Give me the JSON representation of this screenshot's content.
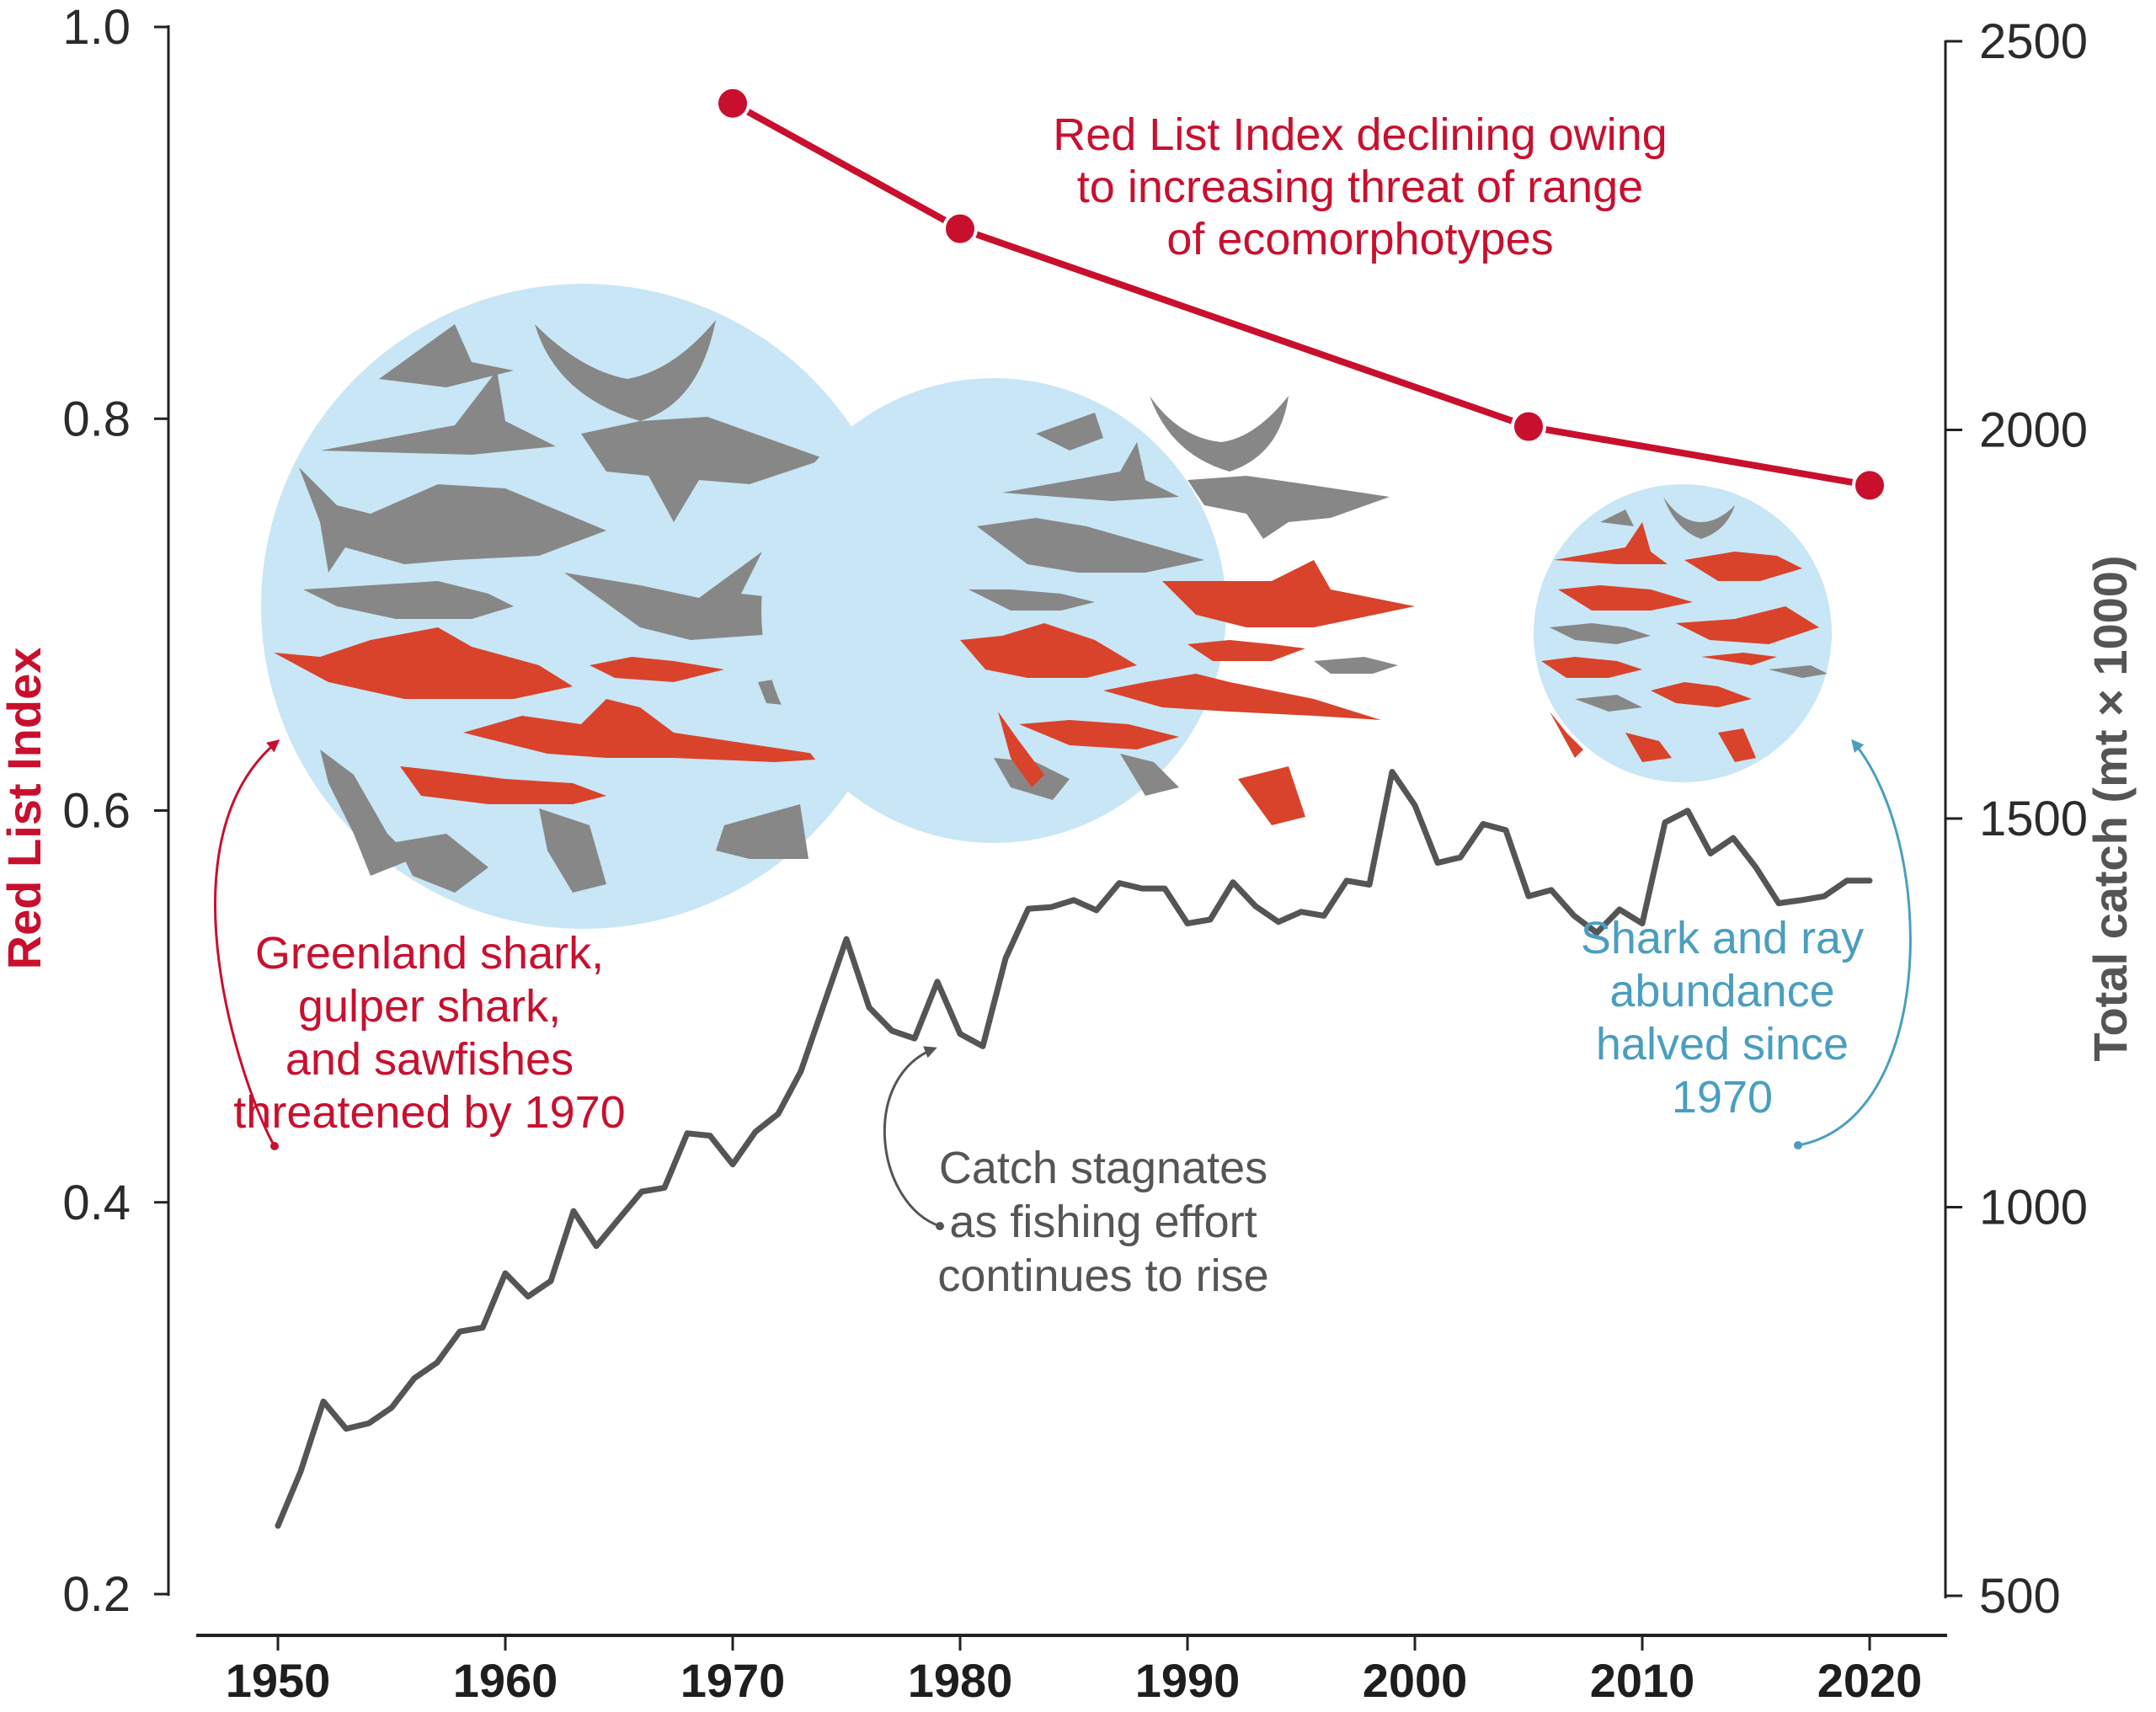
{
  "chart_data": {
    "type": "line",
    "x_range": [
      1946,
      2022
    ],
    "x_ticks": [
      1950,
      1960,
      1970,
      1980,
      1990,
      2000,
      2010,
      2020
    ],
    "y_left": {
      "label": "Red List Index",
      "range": [
        0.2,
        1.0
      ],
      "ticks": [
        "0.2",
        "0.4",
        "0.6",
        "0.8",
        "1.0"
      ],
      "color": "#c8102e"
    },
    "y_right": {
      "label": "Total catch (mt × 1000)",
      "range": [
        500,
        2500
      ],
      "ticks": [
        "500",
        "1000",
        "1500",
        "2000",
        "2500"
      ],
      "color": "#555555"
    },
    "series": [
      {
        "name": "Red List Index",
        "axis": "left",
        "color": "#c8102e",
        "points": [
          [
            1970,
            0.961
          ],
          [
            1980,
            0.897
          ],
          [
            2005,
            0.796
          ],
          [
            2020,
            0.766
          ]
        ]
      },
      {
        "name": "Total catch",
        "axis": "right",
        "color": "#555555",
        "points": [
          [
            1950,
            590
          ],
          [
            1951,
            660
          ],
          [
            1952,
            750
          ],
          [
            1953,
            715
          ],
          [
            1954,
            722
          ],
          [
            1955,
            742
          ],
          [
            1956,
            780
          ],
          [
            1957,
            800
          ],
          [
            1958,
            840
          ],
          [
            1959,
            845
          ],
          [
            1960,
            915
          ],
          [
            1961,
            885
          ],
          [
            1962,
            905
          ],
          [
            1963,
            995
          ],
          [
            1964,
            950
          ],
          [
            1965,
            985
          ],
          [
            1966,
            1020
          ],
          [
            1967,
            1025
          ],
          [
            1968,
            1095
          ],
          [
            1969,
            1092
          ],
          [
            1970,
            1055
          ],
          [
            1971,
            1097
          ],
          [
            1972,
            1120
          ],
          [
            1973,
            1175
          ],
          [
            1974,
            1260
          ],
          [
            1975,
            1345
          ],
          [
            1976,
            1257
          ],
          [
            1977,
            1227
          ],
          [
            1978,
            1217
          ],
          [
            1979,
            1290
          ],
          [
            1980,
            1223
          ],
          [
            1981,
            1207
          ],
          [
            1982,
            1320
          ],
          [
            1983,
            1384
          ],
          [
            1984,
            1386
          ],
          [
            1985,
            1395
          ],
          [
            1986,
            1382
          ],
          [
            1987,
            1417
          ],
          [
            1988,
            1410
          ],
          [
            1989,
            1410
          ],
          [
            1990,
            1365
          ],
          [
            1991,
            1370
          ],
          [
            1992,
            1418
          ],
          [
            1993,
            1387
          ],
          [
            1994,
            1367
          ],
          [
            1995,
            1380
          ],
          [
            1996,
            1375
          ],
          [
            1997,
            1420
          ],
          [
            1998,
            1415
          ],
          [
            1999,
            1560
          ],
          [
            2000,
            1517
          ],
          [
            2001,
            1443
          ],
          [
            2002,
            1450
          ],
          [
            2003,
            1493
          ],
          [
            2004,
            1485
          ],
          [
            2005,
            1400
          ],
          [
            2006,
            1408
          ],
          [
            2007,
            1375
          ],
          [
            2008,
            1353
          ],
          [
            2009,
            1383
          ],
          [
            2010,
            1365
          ],
          [
            2011,
            1495
          ],
          [
            2012,
            1510
          ],
          [
            2013,
            1455
          ],
          [
            2014,
            1475
          ],
          [
            2015,
            1437
          ],
          [
            2016,
            1391
          ],
          [
            2017,
            1395
          ],
          [
            2018,
            1400
          ],
          [
            2019,
            1420
          ],
          [
            2020,
            1420
          ]
        ]
      }
    ],
    "annotations": [
      {
        "id": "rli",
        "lines": [
          "Red List Index declining owing",
          "to increasing threat of range",
          "of ecomorphotypes"
        ],
        "color": "#c8102e"
      },
      {
        "id": "threatened",
        "lines": [
          "Greenland shark,",
          "gulper shark,",
          "and sawfishes",
          "threatened by 1970"
        ],
        "color": "#c8102e"
      },
      {
        "id": "stagnate",
        "lines": [
          "Catch stagnates",
          "as fishing effort",
          "continues to rise"
        ],
        "color": "#555555"
      },
      {
        "id": "abundance",
        "lines": [
          "Shark and ray",
          "abundance",
          "halved since",
          "1970"
        ],
        "color": "#4a9ec0"
      }
    ],
    "illustrations": [
      {
        "name": "shark-ray-circle-1970",
        "year": 1970,
        "fill": "#c8e6f5",
        "threatened_color": "#d9432b",
        "other_color": "#878787"
      },
      {
        "name": "shark-ray-circle-1980",
        "year": 1980,
        "fill": "#c8e6f5",
        "threatened_color": "#d9432b",
        "other_color": "#878787"
      },
      {
        "name": "shark-ray-circle-2010",
        "year": 2010,
        "fill": "#c8e6f5",
        "threatened_color": "#d9432b",
        "other_color": "#878787"
      }
    ],
    "grid": false,
    "legend": "none"
  }
}
